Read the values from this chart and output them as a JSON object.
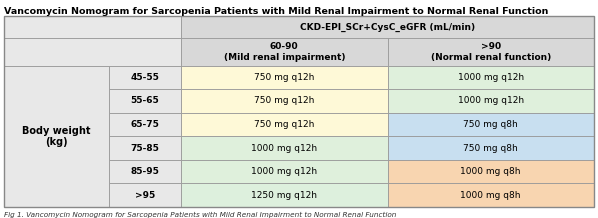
{
  "title": "Vancomycin Nomogram for Sarcopenia Patients with Mild Renal Impairment to Normal Renal Function",
  "col_header_main": "CKD-EPI_SCr+CysC_eGFR (mL/min)",
  "col_header_sub": [
    "60-90\n(Mild renal impairment)",
    ">90\n(Normal renal function)"
  ],
  "row_header_main": "Body weight\n(kg)",
  "row_labels": [
    "45-55",
    "55-65",
    "65-75",
    "75-85",
    "85-95",
    ">95"
  ],
  "data": [
    [
      "750 mg q12h",
      "1000 mg q12h"
    ],
    [
      "750 mg q12h",
      "1000 mg q12h"
    ],
    [
      "750 mg q12h",
      "750 mg q8h"
    ],
    [
      "1000 mg q12h",
      "750 mg q8h"
    ],
    [
      "1000 mg q12h",
      "1000 mg q8h"
    ],
    [
      "1250 mg q12h",
      "1000 mg q8h"
    ]
  ],
  "cell_colors": [
    [
      "#fef9d7",
      "#dff0dc"
    ],
    [
      "#fef9d7",
      "#dff0dc"
    ],
    [
      "#fef9d7",
      "#c8dff0"
    ],
    [
      "#dff0dc",
      "#c8dff0"
    ],
    [
      "#dff0dc",
      "#f8d5b0"
    ],
    [
      "#ddf0dd",
      "#f8d5b0"
    ]
  ],
  "header_gray": "#e8e8e8",
  "subheader_gray": "#d8d8d8",
  "title_fontsize": 6.8,
  "header_fontsize": 6.5,
  "cell_fontsize": 6.5,
  "row_label_fontsize": 6.5,
  "footnote": "Fig 1. Vancomycin Nomogram for Sarcopenia Patients with Mild Renal Impairment to Normal Renal Function"
}
